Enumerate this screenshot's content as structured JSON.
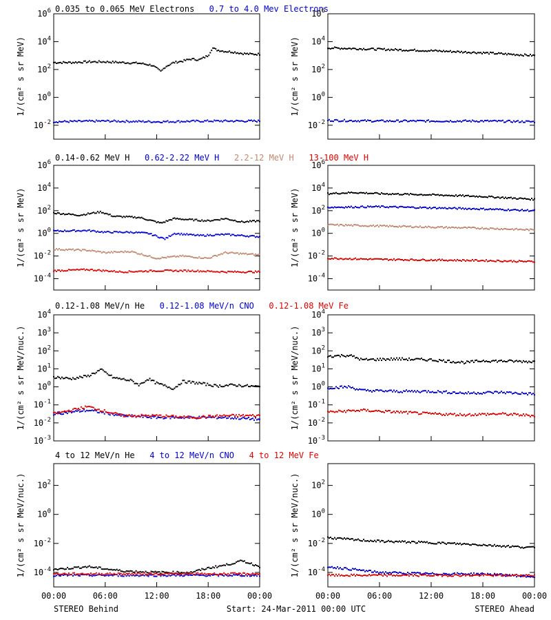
{
  "figure": {
    "footer": {
      "left": "STEREO Behind",
      "center": "Start: 24-Mar-2011 00:00 UTC",
      "right": "STEREO Ahead"
    }
  },
  "chart_data": [
    {
      "type": "scatter",
      "id": "row1",
      "title_items": [
        {
          "text": "0.035 to 0.065 MeV Electrons",
          "color": "#000000"
        },
        {
          "text": "0.7 to 4.0 Mev Electrons",
          "color": "#0000cc"
        }
      ],
      "ylabel": "1/(cm² s sr MeV)",
      "ylog": true,
      "ylim_exp": [
        -3,
        6
      ],
      "ytick_exps": [
        -2,
        0,
        2,
        4,
        6
      ],
      "xlim_hours": [
        0,
        24
      ],
      "xticks": [
        "00:00",
        "06:00",
        "12:00",
        "18:00",
        "00:00"
      ],
      "series": [
        {
          "panel": "behind",
          "color": "#000000",
          "points": [
            [
              0,
              2.5
            ],
            [
              2,
              2.5
            ],
            [
              4,
              2.55
            ],
            [
              6,
              2.55
            ],
            [
              8,
              2.5
            ],
            [
              10,
              2.45
            ],
            [
              11.5,
              2.3
            ],
            [
              12.5,
              1.85
            ],
            [
              13,
              2.2
            ],
            [
              14,
              2.5
            ],
            [
              15,
              2.6
            ],
            [
              16,
              2.75
            ],
            [
              17,
              2.7
            ],
            [
              18,
              3.0
            ],
            [
              18.5,
              3.55
            ],
            [
              19,
              3.4
            ],
            [
              20,
              3.3
            ],
            [
              21,
              3.25
            ],
            [
              22,
              3.15
            ],
            [
              23,
              3.1
            ],
            [
              24,
              3.1
            ]
          ]
        },
        {
          "panel": "behind",
          "color": "#0000cc",
          "points": [
            [
              0,
              -1.75
            ],
            [
              6,
              -1.7
            ],
            [
              12,
              -1.75
            ],
            [
              18,
              -1.7
            ],
            [
              24,
              -1.7
            ]
          ]
        },
        {
          "panel": "ahead",
          "color": "#000000",
          "points": [
            [
              0,
              3.55
            ],
            [
              6,
              3.45
            ],
            [
              12,
              3.35
            ],
            [
              18,
              3.2
            ],
            [
              24,
              3.0
            ]
          ]
        },
        {
          "panel": "ahead",
          "color": "#0000cc",
          "points": [
            [
              0,
              -1.65
            ],
            [
              6,
              -1.7
            ],
            [
              12,
              -1.7
            ],
            [
              18,
              -1.7
            ],
            [
              24,
              -1.75
            ]
          ]
        }
      ]
    },
    {
      "type": "scatter",
      "id": "row2",
      "title_items": [
        {
          "text": "0.14-0.62 MeV H",
          "color": "#000000"
        },
        {
          "text": "0.62-2.22 MeV H",
          "color": "#0000cc"
        },
        {
          "text": "2.2-12 MeV H",
          "color": "#c08870"
        },
        {
          "text": "13-100 MeV H",
          "color": "#dd0000"
        }
      ],
      "ylabel": "1/(cm² s sr MeV)",
      "ylog": true,
      "ylim_exp": [
        -5,
        6
      ],
      "ytick_exps": [
        -4,
        -2,
        0,
        2,
        4,
        6
      ],
      "xlim_hours": [
        0,
        24
      ],
      "xticks": [
        "00:00",
        "06:00",
        "12:00",
        "18:00",
        "00:00"
      ],
      "series": [
        {
          "panel": "behind",
          "color": "#000000",
          "points": [
            [
              0,
              1.8
            ],
            [
              3,
              1.6
            ],
            [
              5.5,
              1.9
            ],
            [
              7,
              1.5
            ],
            [
              10,
              1.4
            ],
            [
              12.5,
              0.9
            ],
            [
              14,
              1.3
            ],
            [
              16,
              1.2
            ],
            [
              18,
              1.1
            ],
            [
              20,
              1.3
            ],
            [
              22,
              1.0
            ],
            [
              24,
              1.1
            ]
          ]
        },
        {
          "panel": "behind",
          "color": "#0000cc",
          "points": [
            [
              0,
              0.2
            ],
            [
              4,
              0.25
            ],
            [
              6,
              0.1
            ],
            [
              9,
              0.1
            ],
            [
              11,
              0.0
            ],
            [
              13,
              -0.5
            ],
            [
              14,
              0.0
            ],
            [
              17,
              -0.2
            ],
            [
              20,
              -0.1
            ],
            [
              22,
              -0.2
            ],
            [
              24,
              -0.3
            ]
          ]
        },
        {
          "panel": "behind",
          "color": "#c08870",
          "points": [
            [
              0,
              -1.4
            ],
            [
              4,
              -1.5
            ],
            [
              6,
              -1.7
            ],
            [
              9,
              -1.6
            ],
            [
              12,
              -2.2
            ],
            [
              15,
              -2.0
            ],
            [
              18,
              -2.2
            ],
            [
              20,
              -1.7
            ],
            [
              22,
              -1.8
            ],
            [
              24,
              -1.9
            ]
          ]
        },
        {
          "panel": "behind",
          "color": "#dd0000",
          "points": [
            [
              0,
              -3.3
            ],
            [
              4,
              -3.2
            ],
            [
              8,
              -3.4
            ],
            [
              12,
              -3.3
            ],
            [
              16,
              -3.3
            ],
            [
              20,
              -3.4
            ],
            [
              24,
              -3.4
            ]
          ]
        },
        {
          "panel": "ahead",
          "color": "#000000",
          "points": [
            [
              0,
              3.5
            ],
            [
              3,
              3.6
            ],
            [
              6,
              3.5
            ],
            [
              12,
              3.4
            ],
            [
              18,
              3.25
            ],
            [
              24,
              3.0
            ]
          ]
        },
        {
          "panel": "ahead",
          "color": "#0000cc",
          "points": [
            [
              0,
              2.3
            ],
            [
              6,
              2.35
            ],
            [
              12,
              2.25
            ],
            [
              18,
              2.15
            ],
            [
              24,
              2.0
            ]
          ]
        },
        {
          "panel": "ahead",
          "color": "#c08870",
          "points": [
            [
              0,
              0.75
            ],
            [
              6,
              0.65
            ],
            [
              12,
              0.55
            ],
            [
              18,
              0.45
            ],
            [
              24,
              0.3
            ]
          ]
        },
        {
          "panel": "ahead",
          "color": "#dd0000",
          "points": [
            [
              0,
              -2.2
            ],
            [
              6,
              -2.3
            ],
            [
              12,
              -2.35
            ],
            [
              18,
              -2.4
            ],
            [
              24,
              -2.5
            ]
          ]
        }
      ]
    },
    {
      "type": "scatter",
      "id": "row3",
      "title_items": [
        {
          "text": "0.12-1.08 MeV/n He",
          "color": "#000000"
        },
        {
          "text": "0.12-1.08 MeV/n CNO",
          "color": "#0000cc"
        },
        {
          "text": "0.12-1.08 MeV Fe",
          "color": "#dd0000"
        }
      ],
      "ylabel": "1/(cm² s sr MeV/nuc.)",
      "ylog": true,
      "ylim_exp": [
        -3,
        4
      ],
      "ytick_exps": [
        -3,
        -2,
        -1,
        0,
        1,
        2,
        3,
        4
      ],
      "xlim_hours": [
        0,
        24
      ],
      "xticks": [
        "00:00",
        "06:00",
        "12:00",
        "18:00",
        "00:00"
      ],
      "series": [
        {
          "panel": "behind",
          "color": "#000000",
          "points": [
            [
              0,
              0.55
            ],
            [
              2,
              0.45
            ],
            [
              4,
              0.6
            ],
            [
              5.5,
              0.95
            ],
            [
              7,
              0.5
            ],
            [
              9,
              0.35
            ],
            [
              10,
              0.1
            ],
            [
              11,
              0.45
            ],
            [
              12,
              0.2
            ],
            [
              14,
              -0.1
            ],
            [
              15,
              0.3
            ],
            [
              17,
              0.2
            ],
            [
              19,
              0.05
            ],
            [
              21,
              0.1
            ],
            [
              24,
              0.0
            ]
          ]
        },
        {
          "panel": "behind",
          "color": "#0000cc",
          "points": [
            [
              0,
              -1.5
            ],
            [
              4,
              -1.3
            ],
            [
              8,
              -1.6
            ],
            [
              12,
              -1.7
            ],
            [
              16,
              -1.7
            ],
            [
              20,
              -1.7
            ],
            [
              24,
              -1.8
            ]
          ]
        },
        {
          "panel": "behind",
          "color": "#dd0000",
          "points": [
            [
              0,
              -1.5
            ],
            [
              4,
              -1.1
            ],
            [
              8,
              -1.6
            ],
            [
              12,
              -1.6
            ],
            [
              16,
              -1.7
            ],
            [
              20,
              -1.6
            ],
            [
              24,
              -1.6
            ]
          ]
        },
        {
          "panel": "ahead",
          "color": "#000000",
          "points": [
            [
              0,
              1.7
            ],
            [
              2.5,
              1.75
            ],
            [
              4,
              1.5
            ],
            [
              8,
              1.55
            ],
            [
              12,
              1.5
            ],
            [
              16,
              1.35
            ],
            [
              18,
              1.45
            ],
            [
              24,
              1.4
            ]
          ]
        },
        {
          "panel": "ahead",
          "color": "#0000cc",
          "points": [
            [
              0,
              -0.05
            ],
            [
              2.5,
              0.0
            ],
            [
              4,
              -0.2
            ],
            [
              8,
              -0.25
            ],
            [
              12,
              -0.25
            ],
            [
              16,
              -0.35
            ],
            [
              20,
              -0.3
            ],
            [
              24,
              -0.4
            ]
          ]
        },
        {
          "panel": "ahead",
          "color": "#dd0000",
          "points": [
            [
              0,
              -1.4
            ],
            [
              4,
              -1.3
            ],
            [
              8,
              -1.4
            ],
            [
              12,
              -1.5
            ],
            [
              16,
              -1.55
            ],
            [
              20,
              -1.5
            ],
            [
              24,
              -1.6
            ]
          ]
        }
      ]
    },
    {
      "type": "scatter",
      "id": "row4",
      "title_items": [
        {
          "text": "4 to 12 MeV/n He",
          "color": "#000000"
        },
        {
          "text": "4 to 12 MeV/n CNO",
          "color": "#0000cc"
        },
        {
          "text": "4 to 12 MeV Fe",
          "color": "#dd0000"
        }
      ],
      "ylabel": "1/(cm² s sr MeV/nuc.)",
      "ylog": true,
      "ylim_exp": [
        -5,
        3.5
      ],
      "ytick_exps": [
        -4,
        -2,
        0,
        2
      ],
      "xlim_hours": [
        0,
        24
      ],
      "xticks": [
        "00:00",
        "06:00",
        "12:00",
        "18:00",
        "00:00"
      ],
      "series": [
        {
          "panel": "behind",
          "color": "#000000",
          "points": [
            [
              0,
              -3.8
            ],
            [
              4,
              -3.6
            ],
            [
              8,
              -3.9
            ],
            [
              12,
              -4.0
            ],
            [
              16,
              -4.0
            ],
            [
              18,
              -3.7
            ],
            [
              20,
              -3.5
            ],
            [
              22,
              -3.2
            ],
            [
              24,
              -3.6
            ]
          ]
        },
        {
          "panel": "behind",
          "color": "#0000cc",
          "points": [
            [
              0,
              -4.2
            ],
            [
              6,
              -4.2
            ],
            [
              12,
              -4.2
            ],
            [
              18,
              -4.2
            ],
            [
              24,
              -4.2
            ]
          ]
        },
        {
          "panel": "behind",
          "color": "#dd0000",
          "points": [
            [
              0,
              -4.1
            ],
            [
              6,
              -4.1
            ],
            [
              12,
              -4.1
            ],
            [
              18,
              -4.1
            ],
            [
              24,
              -4.1
            ]
          ]
        },
        {
          "panel": "ahead",
          "color": "#000000",
          "points": [
            [
              0,
              -1.6
            ],
            [
              3,
              -1.75
            ],
            [
              6,
              -1.85
            ],
            [
              12,
              -1.95
            ],
            [
              18,
              -2.1
            ],
            [
              24,
              -2.3
            ]
          ]
        },
        {
          "panel": "ahead",
          "color": "#0000cc",
          "points": [
            [
              0,
              -3.6
            ],
            [
              6,
              -4.0
            ],
            [
              12,
              -4.1
            ],
            [
              18,
              -4.1
            ],
            [
              24,
              -4.3
            ]
          ]
        },
        {
          "panel": "ahead",
          "color": "#dd0000",
          "points": [
            [
              0,
              -4.2
            ],
            [
              6,
              -4.2
            ],
            [
              12,
              -4.2
            ],
            [
              18,
              -4.2
            ],
            [
              24,
              -4.2
            ]
          ]
        }
      ]
    }
  ]
}
